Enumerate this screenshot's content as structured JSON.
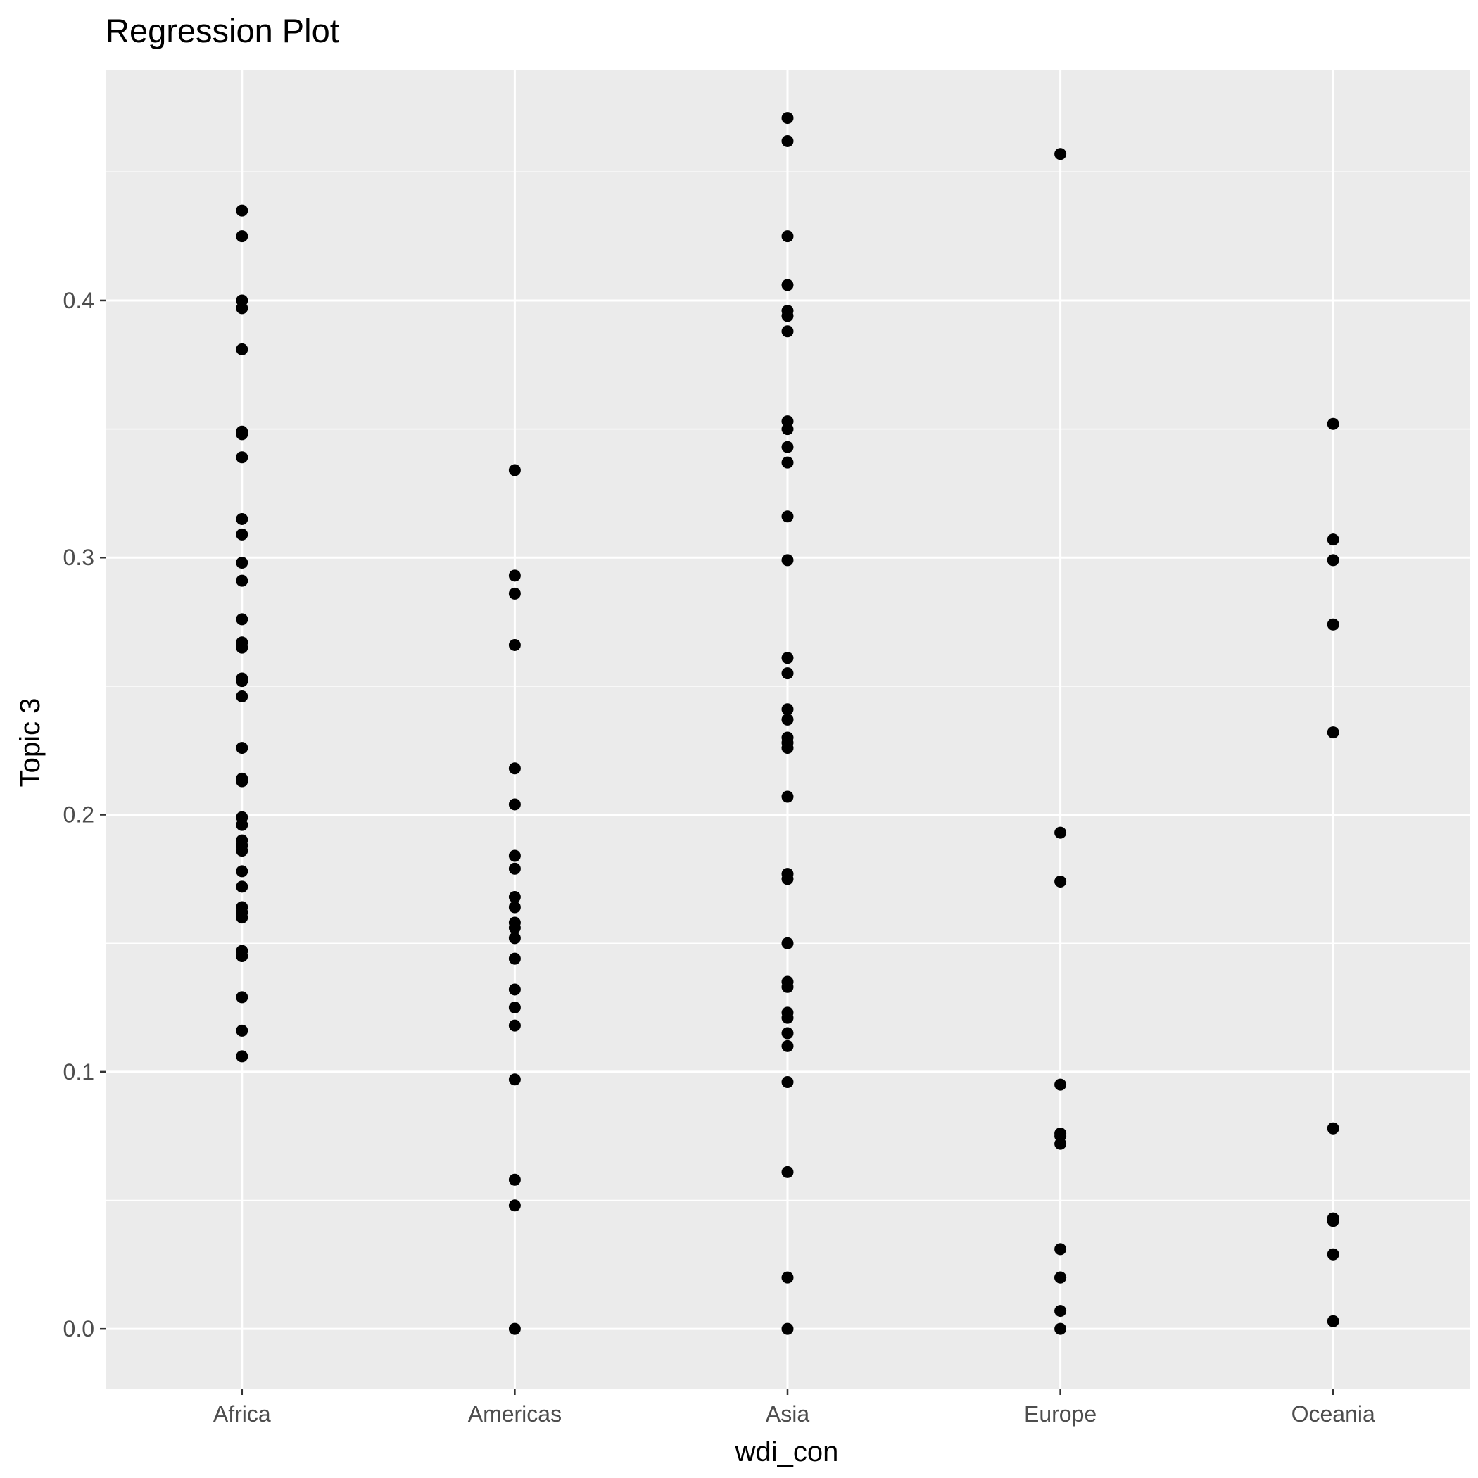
{
  "chart_data": {
    "type": "scatter",
    "title": "Regression Plot",
    "xlabel": "wdi_con",
    "ylabel": "Topic 3",
    "categories": [
      "Africa",
      "Americas",
      "Asia",
      "Europe",
      "Oceania"
    ],
    "y_ticks": [
      0.0,
      0.1,
      0.2,
      0.3,
      0.4
    ],
    "y_tick_labels": [
      "0.0",
      "0.1",
      "0.2",
      "0.3",
      "0.4"
    ],
    "ylim": [
      -0.0235,
      0.4895
    ],
    "grid": true,
    "legend": "none",
    "colors": {
      "panel": "#ebebeb",
      "grid": "#ffffff",
      "point": "#000000",
      "tick": "#333333"
    },
    "series": [
      {
        "category": "Africa",
        "values": [
          0.435,
          0.425,
          0.4,
          0.397,
          0.381,
          0.349,
          0.348,
          0.339,
          0.315,
          0.309,
          0.298,
          0.291,
          0.276,
          0.267,
          0.265,
          0.253,
          0.252,
          0.246,
          0.226,
          0.214,
          0.213,
          0.199,
          0.196,
          0.19,
          0.188,
          0.186,
          0.178,
          0.172,
          0.164,
          0.162,
          0.16,
          0.147,
          0.145,
          0.129,
          0.116,
          0.106
        ]
      },
      {
        "category": "Americas",
        "values": [
          0.334,
          0.293,
          0.286,
          0.266,
          0.218,
          0.204,
          0.184,
          0.179,
          0.168,
          0.164,
          0.158,
          0.156,
          0.152,
          0.144,
          0.132,
          0.125,
          0.118,
          0.097,
          0.058,
          0.048,
          0.0
        ]
      },
      {
        "category": "Asia",
        "values": [
          0.471,
          0.462,
          0.425,
          0.406,
          0.396,
          0.394,
          0.388,
          0.353,
          0.35,
          0.343,
          0.337,
          0.316,
          0.299,
          0.261,
          0.255,
          0.241,
          0.237,
          0.23,
          0.228,
          0.226,
          0.207,
          0.177,
          0.175,
          0.15,
          0.135,
          0.133,
          0.123,
          0.121,
          0.115,
          0.11,
          0.096,
          0.061,
          0.02,
          0.0
        ]
      },
      {
        "category": "Europe",
        "values": [
          0.457,
          0.193,
          0.174,
          0.095,
          0.076,
          0.075,
          0.072,
          0.031,
          0.02,
          0.02,
          0.007,
          0.0
        ]
      },
      {
        "category": "Oceania",
        "values": [
          0.352,
          0.307,
          0.299,
          0.274,
          0.232,
          0.078,
          0.043,
          0.042,
          0.029,
          0.003
        ]
      }
    ]
  }
}
